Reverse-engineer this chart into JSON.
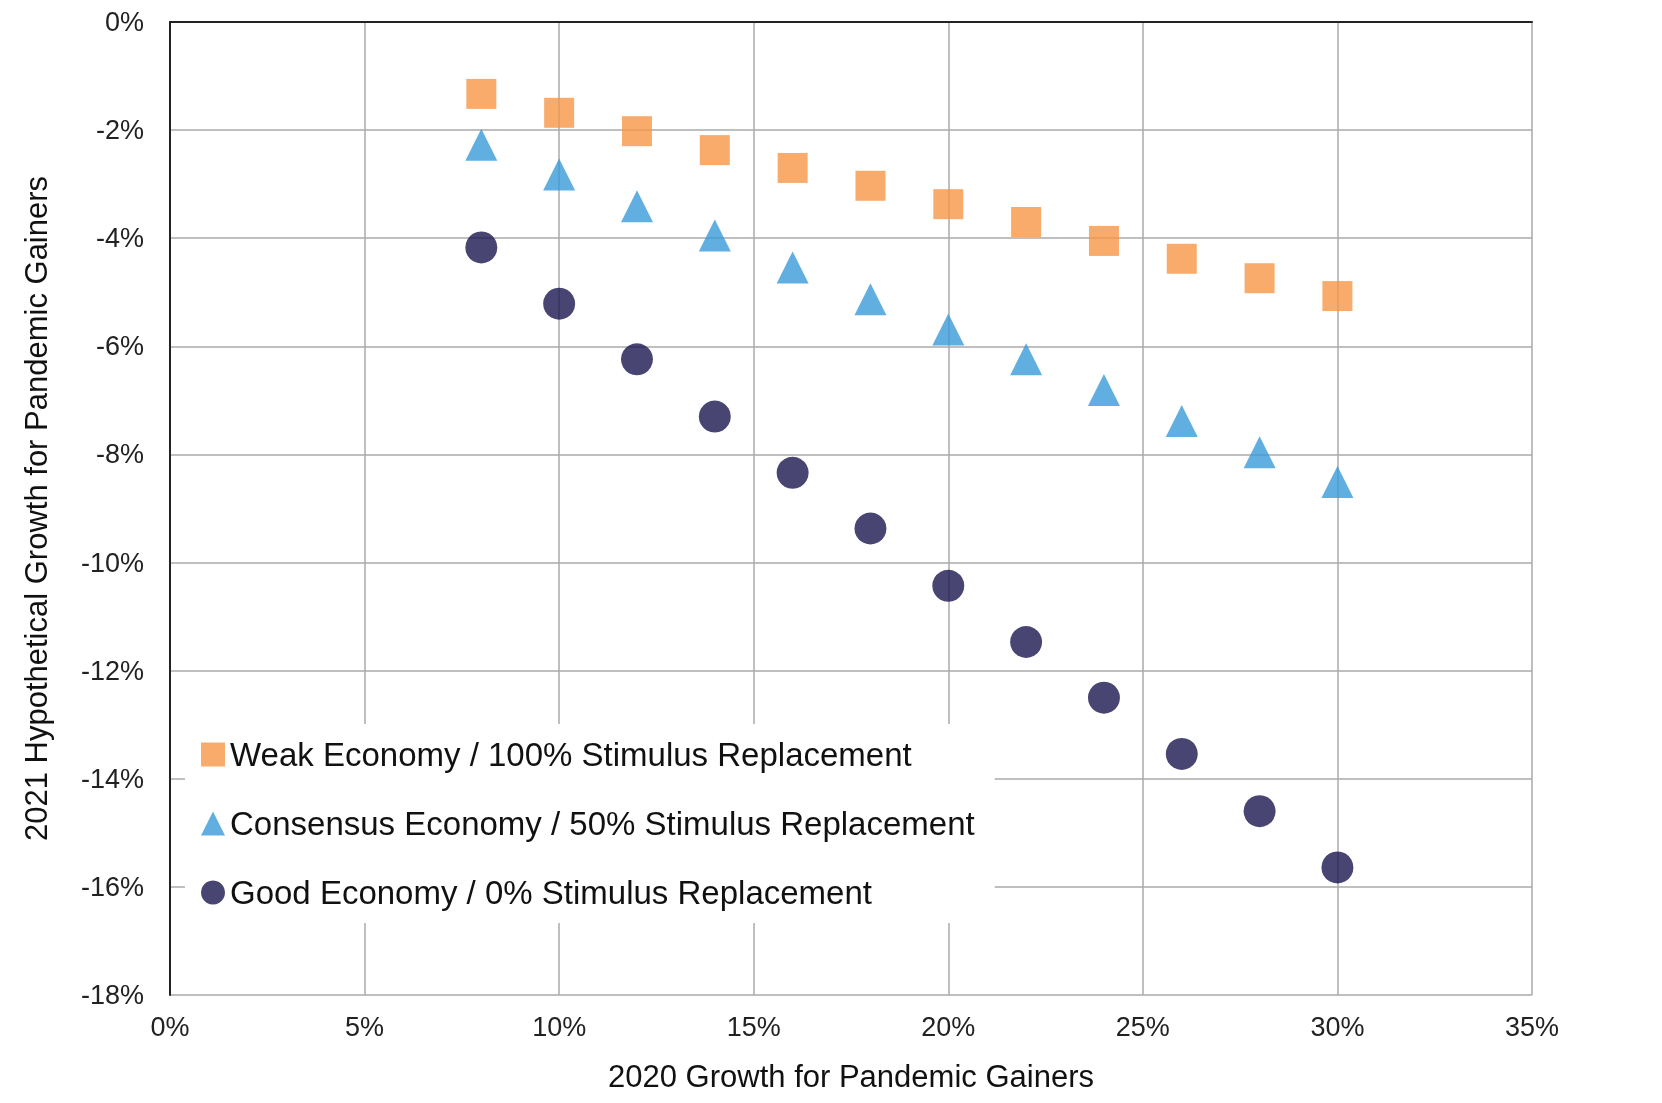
{
  "chart_data": {
    "type": "scatter",
    "xlabel": "2020 Growth for Pandemic Gainers",
    "ylabel": "2021 Hypothetical Growth for Pandemic Gainers",
    "x": [
      8,
      10,
      12,
      14,
      16,
      18,
      20,
      22,
      24,
      26,
      28,
      30
    ],
    "series": [
      {
        "name": "Weak Economy / 100% Stimulus Replacement",
        "color": "#f79646",
        "marker": "square",
        "values": [
          -1.33,
          -1.68,
          -2.02,
          -2.37,
          -2.7,
          -3.03,
          -3.37,
          -3.7,
          -4.05,
          -4.38,
          -4.74,
          -5.07
        ]
      },
      {
        "name": "Consensus Economy / 50% Stimulus Replacement",
        "color": "#3a9ad9",
        "marker": "triangle",
        "values": [
          -2.27,
          -2.82,
          -3.41,
          -3.95,
          -4.54,
          -5.13,
          -5.69,
          -6.24,
          -6.81,
          -7.38,
          -7.96,
          -8.51
        ]
      },
      {
        "name": "Good Economy / 0% Stimulus Replacement",
        "color": "#1a1650",
        "marker": "circle",
        "values": [
          -4.17,
          -5.21,
          -6.24,
          -7.3,
          -8.34,
          -9.37,
          -10.43,
          -11.47,
          -12.5,
          -13.54,
          -14.6,
          -15.64
        ]
      }
    ],
    "xlim": [
      0,
      35
    ],
    "xticks": [
      {
        "value": 0,
        "label": "0%"
      },
      {
        "value": 5,
        "label": "5%"
      },
      {
        "value": 10,
        "label": "10%"
      },
      {
        "value": 15,
        "label": "15%"
      },
      {
        "value": 20,
        "label": "20%"
      },
      {
        "value": 25,
        "label": "25%"
      },
      {
        "value": 30,
        "label": "30%"
      },
      {
        "value": 35,
        "label": "35%"
      }
    ],
    "ylim": [
      -18,
      0
    ],
    "yticks": [
      {
        "value": 0,
        "label": "0%"
      },
      {
        "value": -2,
        "label": "-2%"
      },
      {
        "value": -4,
        "label": "-4%"
      },
      {
        "value": -6,
        "label": "-6%"
      },
      {
        "value": -8,
        "label": "-8%"
      },
      {
        "value": -10,
        "label": "-10%"
      },
      {
        "value": -12,
        "label": "-12%"
      },
      {
        "value": -14,
        "label": "-14%"
      },
      {
        "value": -16,
        "label": "-16%"
      },
      {
        "value": -18,
        "label": "-18%"
      }
    ],
    "grid": true,
    "legend": "bottom left"
  }
}
